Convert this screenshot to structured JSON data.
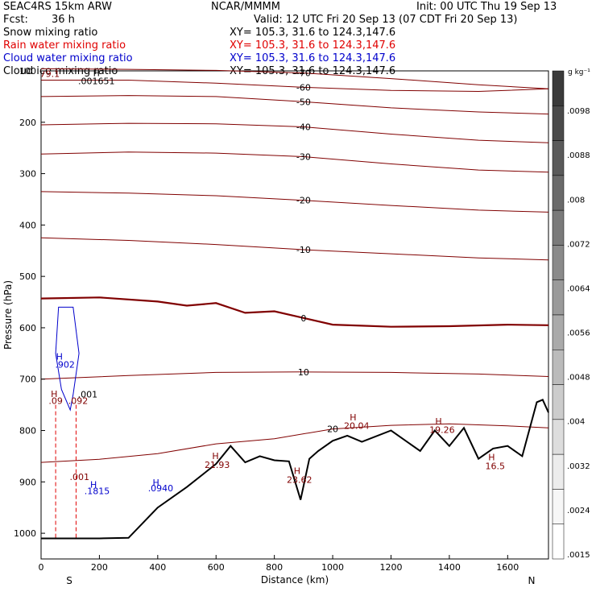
{
  "header": {
    "model": "SEAC4RS 15km ARW",
    "fcst_label": "Fcst:",
    "fcst_value": "36 h",
    "center": "NCAR/MMMM",
    "init": "Init: 00 UTC Thu 19 Sep 13",
    "valid": "Valid: 12 UTC Fri 20 Sep 13 (07 CDT Fri 20 Sep 13)"
  },
  "fields": [
    {
      "name": "Snow mixing ratio",
      "xy": "XY= 105.3, 31.6 to 124.3,147.6",
      "color": "#000000"
    },
    {
      "name": "Rain water mixing ratio",
      "xy": "XY= 105.3, 31.6 to 124.3,147.6",
      "color": "#e00000"
    },
    {
      "name": "Cloud water mixing ratio",
      "xy": "XY= 105.3, 31.6 to 124.3,147.6",
      "color": "#0000cc"
    },
    {
      "name": "Cloud ice mixing ratio",
      "xy": "XY= 105.3, 31.6 to 124.3,147.6",
      "color": "#000000"
    }
  ],
  "chart_data": {
    "type": "line",
    "xlabel": "Distance (km)",
    "ylabel": "Pressure (hPa)",
    "xlim": [
      0,
      1740
    ],
    "ylim": [
      1050,
      100
    ],
    "x_ticks": [
      0,
      200,
      400,
      600,
      800,
      1000,
      1200,
      1400,
      1600
    ],
    "y_ticks": [
      100,
      200,
      300,
      400,
      500,
      600,
      700,
      800,
      900,
      1000
    ],
    "y_tick_labels": [
      "100",
      "200",
      "300",
      "400",
      "500",
      "600",
      "700",
      "800",
      "900",
      "1000"
    ],
    "x_end_labels": {
      "left": "S",
      "right": "N"
    },
    "temperature_isotherms": [
      {
        "label": "-70",
        "points": [
          [
            0,
            96
          ],
          [
            300,
            97
          ],
          [
            600,
            99
          ],
          [
            900,
            104
          ],
          [
            1200,
            115
          ],
          [
            1500,
            127
          ],
          [
            1740,
            135
          ]
        ]
      },
      {
        "label": "-60",
        "points": [
          [
            0,
            118
          ],
          [
            300,
            118
          ],
          [
            600,
            124
          ],
          [
            900,
            132
          ],
          [
            1200,
            138
          ],
          [
            1500,
            140
          ],
          [
            1740,
            135
          ]
        ]
      },
      {
        "label": "-50",
        "points": [
          [
            0,
            150
          ],
          [
            300,
            148
          ],
          [
            600,
            150
          ],
          [
            900,
            160
          ],
          [
            1200,
            172
          ],
          [
            1500,
            180
          ],
          [
            1740,
            184
          ]
        ]
      },
      {
        "label": "-40",
        "points": [
          [
            0,
            205
          ],
          [
            300,
            202
          ],
          [
            600,
            203
          ],
          [
            900,
            209
          ],
          [
            1200,
            223
          ],
          [
            1500,
            235
          ],
          [
            1740,
            240
          ]
        ]
      },
      {
        "label": "-30",
        "points": [
          [
            0,
            262
          ],
          [
            300,
            258
          ],
          [
            600,
            260
          ],
          [
            900,
            267
          ],
          [
            1200,
            281
          ],
          [
            1500,
            293
          ],
          [
            1740,
            297
          ]
        ]
      },
      {
        "label": "-20",
        "points": [
          [
            0,
            335
          ],
          [
            300,
            338
          ],
          [
            600,
            343
          ],
          [
            900,
            352
          ],
          [
            1200,
            362
          ],
          [
            1500,
            371
          ],
          [
            1740,
            375
          ]
        ]
      },
      {
        "label": "-10",
        "points": [
          [
            0,
            425
          ],
          [
            300,
            430
          ],
          [
            600,
            438
          ],
          [
            900,
            448
          ],
          [
            1200,
            456
          ],
          [
            1500,
            464
          ],
          [
            1740,
            468
          ]
        ]
      },
      {
        "label": "0",
        "points": [
          [
            0,
            543
          ],
          [
            200,
            541
          ],
          [
            400,
            549
          ],
          [
            500,
            557
          ],
          [
            600,
            552
          ],
          [
            700,
            571
          ],
          [
            800,
            568
          ],
          [
            900,
            581
          ],
          [
            1000,
            594
          ],
          [
            1100,
            596
          ],
          [
            1200,
            598
          ],
          [
            1400,
            597
          ],
          [
            1600,
            594
          ],
          [
            1740,
            595
          ]
        ]
      },
      {
        "label": "10",
        "points": [
          [
            0,
            700
          ],
          [
            300,
            693
          ],
          [
            600,
            687
          ],
          [
            900,
            686
          ],
          [
            1200,
            687
          ],
          [
            1500,
            690
          ],
          [
            1740,
            695
          ]
        ]
      },
      {
        "label": "20",
        "points": [
          [
            0,
            862
          ],
          [
            200,
            856
          ],
          [
            400,
            845
          ],
          [
            600,
            826
          ],
          [
            800,
            816
          ],
          [
            1000,
            797
          ],
          [
            1200,
            790
          ],
          [
            1400,
            787
          ],
          [
            1600,
            791
          ],
          [
            1740,
            795
          ]
        ]
      }
    ],
    "terrain": [
      [
        0,
        1010
      ],
      [
        100,
        1010
      ],
      [
        200,
        1010
      ],
      [
        300,
        1009
      ],
      [
        400,
        950
      ],
      [
        500,
        910
      ],
      [
        600,
        865
      ],
      [
        650,
        830
      ],
      [
        700,
        862
      ],
      [
        750,
        850
      ],
      [
        800,
        858
      ],
      [
        850,
        860
      ],
      [
        890,
        935
      ],
      [
        920,
        855
      ],
      [
        950,
        840
      ],
      [
        1000,
        820
      ],
      [
        1050,
        810
      ],
      [
        1100,
        822
      ],
      [
        1200,
        800
      ],
      [
        1300,
        840
      ],
      [
        1350,
        800
      ],
      [
        1400,
        830
      ],
      [
        1450,
        795
      ],
      [
        1500,
        855
      ],
      [
        1550,
        835
      ],
      [
        1600,
        830
      ],
      [
        1650,
        850
      ],
      [
        1700,
        745
      ],
      [
        1720,
        740
      ],
      [
        1740,
        765
      ]
    ],
    "annotations": [
      {
        "text": "79.1",
        "x": 30,
        "y": 112,
        "color": "#800000"
      },
      {
        "text": "H",
        "x": 190,
        "y": 110,
        "color": "#000000"
      },
      {
        "text": ".001651",
        "x": 190,
        "y": 126,
        "color": "#000000"
      },
      {
        "text": "H",
        "x": 63,
        "y": 662,
        "color": "#0000cc"
      },
      {
        "text": ".902",
        "x": 82,
        "y": 678,
        "color": "#0000cc"
      },
      {
        "text": "H",
        "x": 45,
        "y": 735,
        "color": "#800000"
      },
      {
        "text": ".09",
        "x": 50,
        "y": 748,
        "color": "#800000"
      },
      {
        "text": ".092",
        "x": 127,
        "y": 748,
        "color": "#800000"
      },
      {
        "text": ".001",
        "x": 160,
        "y": 736,
        "color": "#000000"
      },
      {
        "text": ".001",
        "x": 132,
        "y": 896,
        "color": "#800000"
      },
      {
        "text": "H",
        "x": 180,
        "y": 911,
        "color": "#0000cc"
      },
      {
        "text": ".1815",
        "x": 192,
        "y": 924,
        "color": "#0000cc"
      },
      {
        "text": "H",
        "x": 394,
        "y": 907,
        "color": "#0000cc"
      },
      {
        "text": ".0940",
        "x": 410,
        "y": 918,
        "color": "#0000cc"
      },
      {
        "text": "H",
        "x": 598,
        "y": 856,
        "color": "#800000"
      },
      {
        "text": "21.93",
        "x": 604,
        "y": 873,
        "color": "#800000"
      },
      {
        "text": "H",
        "x": 878,
        "y": 885,
        "color": "#800000"
      },
      {
        "text": "23.62",
        "x": 886,
        "y": 902,
        "color": "#800000"
      },
      {
        "text": "H",
        "x": 1070,
        "y": 780,
        "color": "#800000"
      },
      {
        "text": "20.04",
        "x": 1082,
        "y": 797,
        "color": "#800000"
      },
      {
        "text": "H",
        "x": 1363,
        "y": 788,
        "color": "#800000"
      },
      {
        "text": "19.26",
        "x": 1375,
        "y": 805,
        "color": "#800000"
      },
      {
        "text": "H",
        "x": 1545,
        "y": 858,
        "color": "#800000"
      },
      {
        "text": "16.5",
        "x": 1557,
        "y": 875,
        "color": "#800000"
      }
    ],
    "rain_dashed_x": [
      50,
      120
    ],
    "cloud_ice_contour": [
      [
        60,
        560
      ],
      [
        110,
        560
      ],
      [
        130,
        650
      ],
      [
        110,
        730
      ],
      [
        100,
        760
      ],
      [
        70,
        720
      ],
      [
        50,
        650
      ],
      [
        60,
        560
      ]
    ],
    "colorbar": {
      "unit": "g kg⁻¹",
      "labels": [
        ".0098",
        ".0088",
        ".008",
        ".0072",
        ".0064",
        ".0056",
        ".0048",
        ".004",
        ".0032",
        ".0024",
        ".0015"
      ],
      "colors": [
        "#3a3a3a",
        "#4a4a4a",
        "#5a5a5a",
        "#6a6a6a",
        "#7a7a7a",
        "#8a8a8a",
        "#9a9a9a",
        "#aaaaaa",
        "#bbbbbb",
        "#cccccc",
        "#dddddd",
        "#ececec",
        "#f7f7f7",
        "#ffffff"
      ]
    }
  }
}
